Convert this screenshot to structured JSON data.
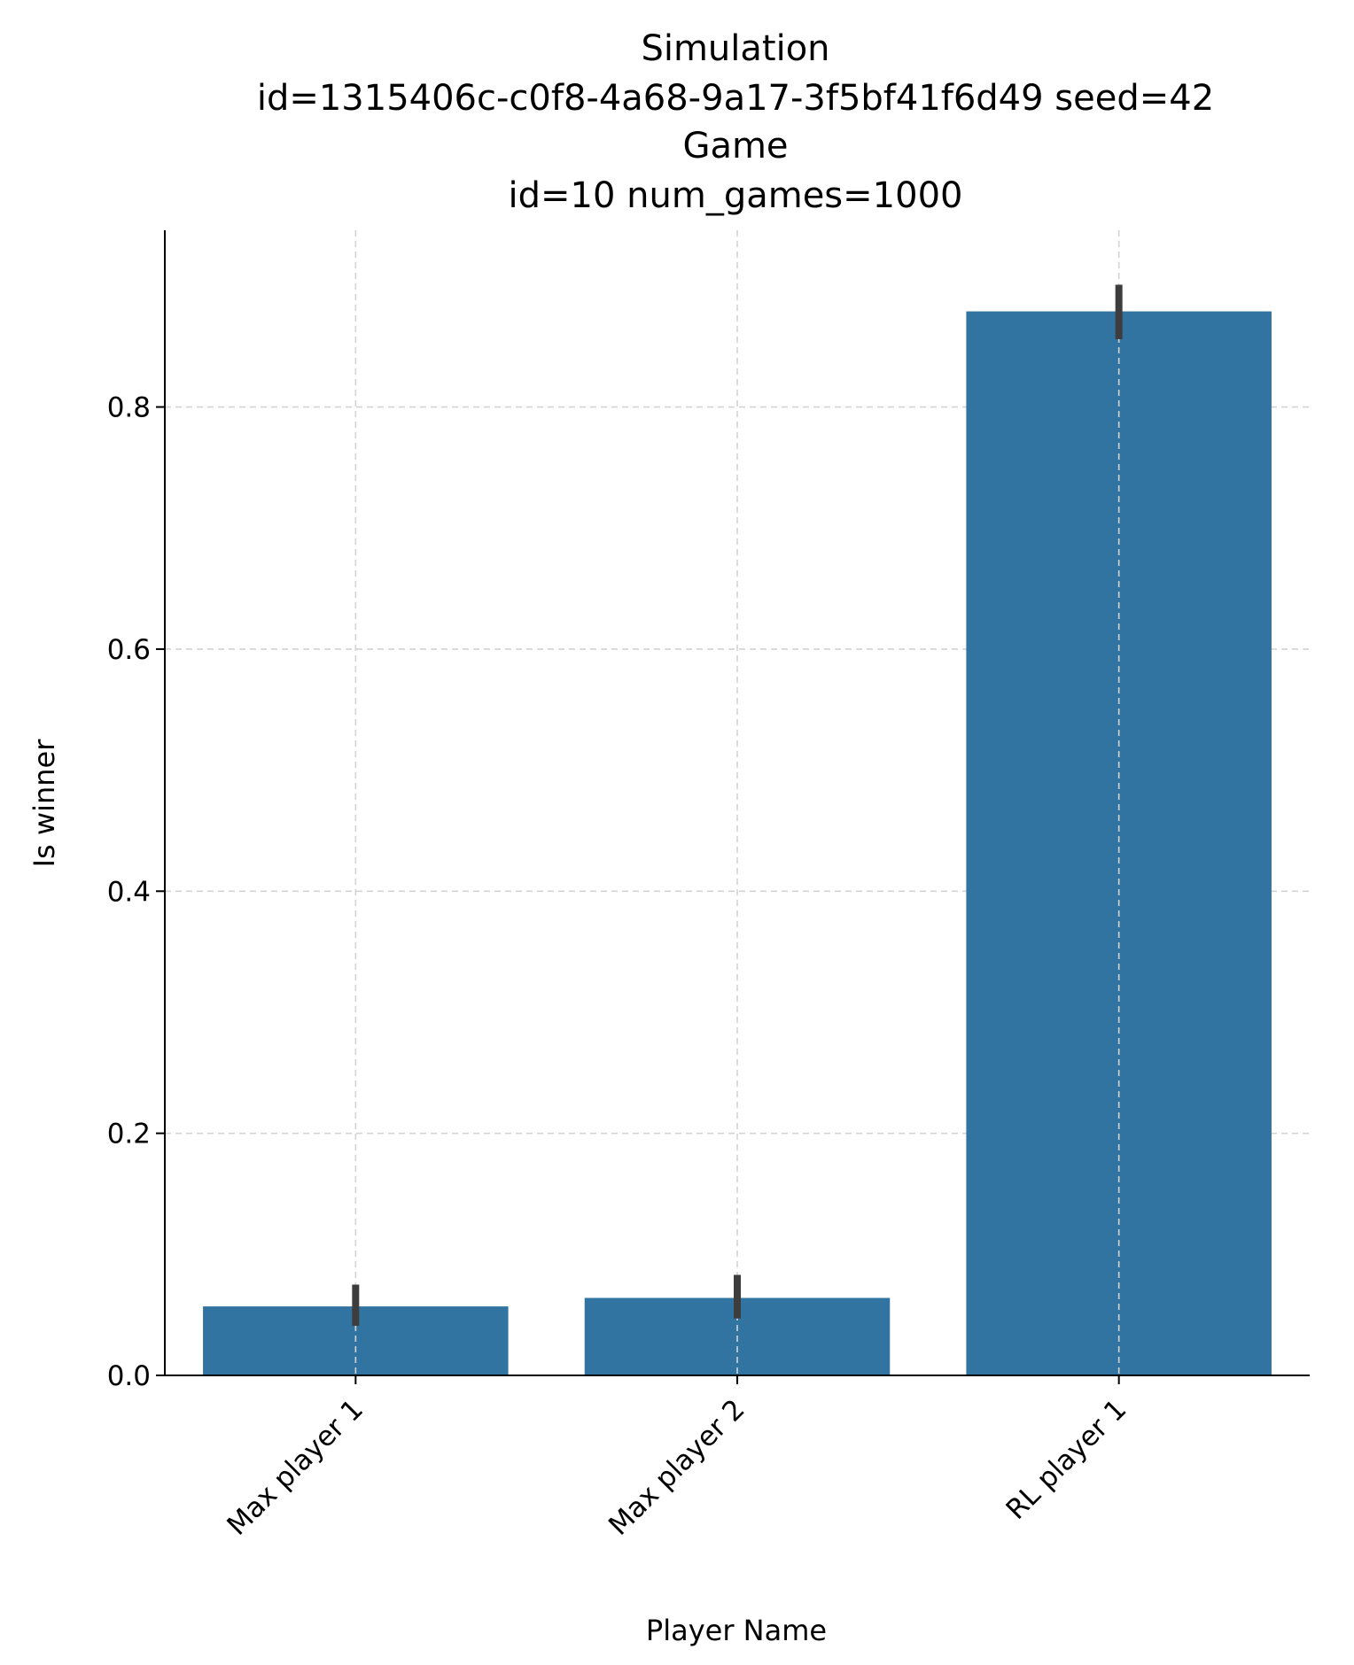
{
  "chart_data": {
    "type": "bar",
    "title": [
      "Simulation",
      "id=1315406c-c0f8-4a68-9a17-3f5bf41f6d49 seed=42",
      "Game",
      "id=10 num_games=1000"
    ],
    "xlabel": "Player Name",
    "ylabel": "Is winner",
    "categories": [
      "Max player 1",
      "Max player 2",
      "RL player 1"
    ],
    "values": [
      0.057,
      0.064,
      0.879
    ],
    "error_bars": [
      {
        "low": 0.041,
        "high": 0.075
      },
      {
        "low": 0.047,
        "high": 0.083
      },
      {
        "low": 0.856,
        "high": 0.901
      }
    ],
    "ylim": [
      0,
      0.946
    ],
    "yticks": [
      0.0,
      0.2,
      0.4,
      0.6,
      0.8
    ],
    "ytick_labels": [
      "0.0",
      "0.2",
      "0.4",
      "0.6",
      "0.8"
    ],
    "grid": true,
    "grid_style": "dashed",
    "bar_color": "#3274a1",
    "errorbar_color": "#3d3d3d",
    "grid_color": "#d3d3d3"
  }
}
